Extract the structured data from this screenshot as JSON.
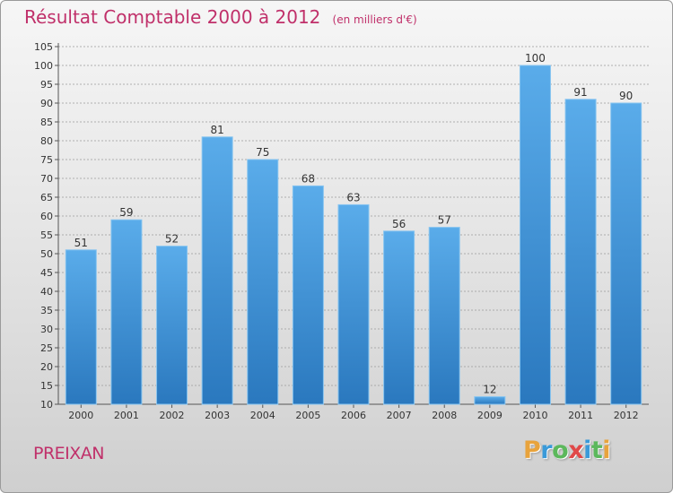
{
  "header": {
    "title": "Résultat Comptable 2000 à 2012",
    "subtitle": "(en milliers d'€)"
  },
  "footer": {
    "commune": "PREIXAN",
    "logo_letters": [
      {
        "ch": "P",
        "color": "#e8a33c"
      },
      {
        "ch": "r",
        "color": "#3a9ad9"
      },
      {
        "ch": "o",
        "color": "#5cb85c"
      },
      {
        "ch": "x",
        "color": "#e04848"
      },
      {
        "ch": "i",
        "color": "#3a9ad9"
      },
      {
        "ch": "t",
        "color": "#5cb85c"
      },
      {
        "ch": "i",
        "color": "#e8a33c"
      }
    ]
  },
  "colors": {
    "accent": "#c0306a",
    "bar_top": "#5aacea",
    "bar_bottom": "#2a78be",
    "bar_stroke": "#86c4f0",
    "grid": "#9a9a9a"
  },
  "chart_data": {
    "type": "bar",
    "categories": [
      "2000",
      "2001",
      "2002",
      "2003",
      "2004",
      "2005",
      "2006",
      "2007",
      "2008",
      "2009",
      "2010",
      "2011",
      "2012"
    ],
    "values": [
      51,
      59,
      52,
      81,
      75,
      68,
      63,
      56,
      57,
      12,
      100,
      91,
      90
    ],
    "title": "Résultat Comptable 2000 à 2012",
    "xlabel": "",
    "ylabel": "",
    "ylim": [
      10,
      105
    ],
    "yticks": [
      10,
      15,
      20,
      25,
      30,
      35,
      40,
      45,
      50,
      55,
      60,
      65,
      70,
      75,
      80,
      85,
      90,
      95,
      100,
      105
    ],
    "grid": true,
    "legend": "none"
  }
}
